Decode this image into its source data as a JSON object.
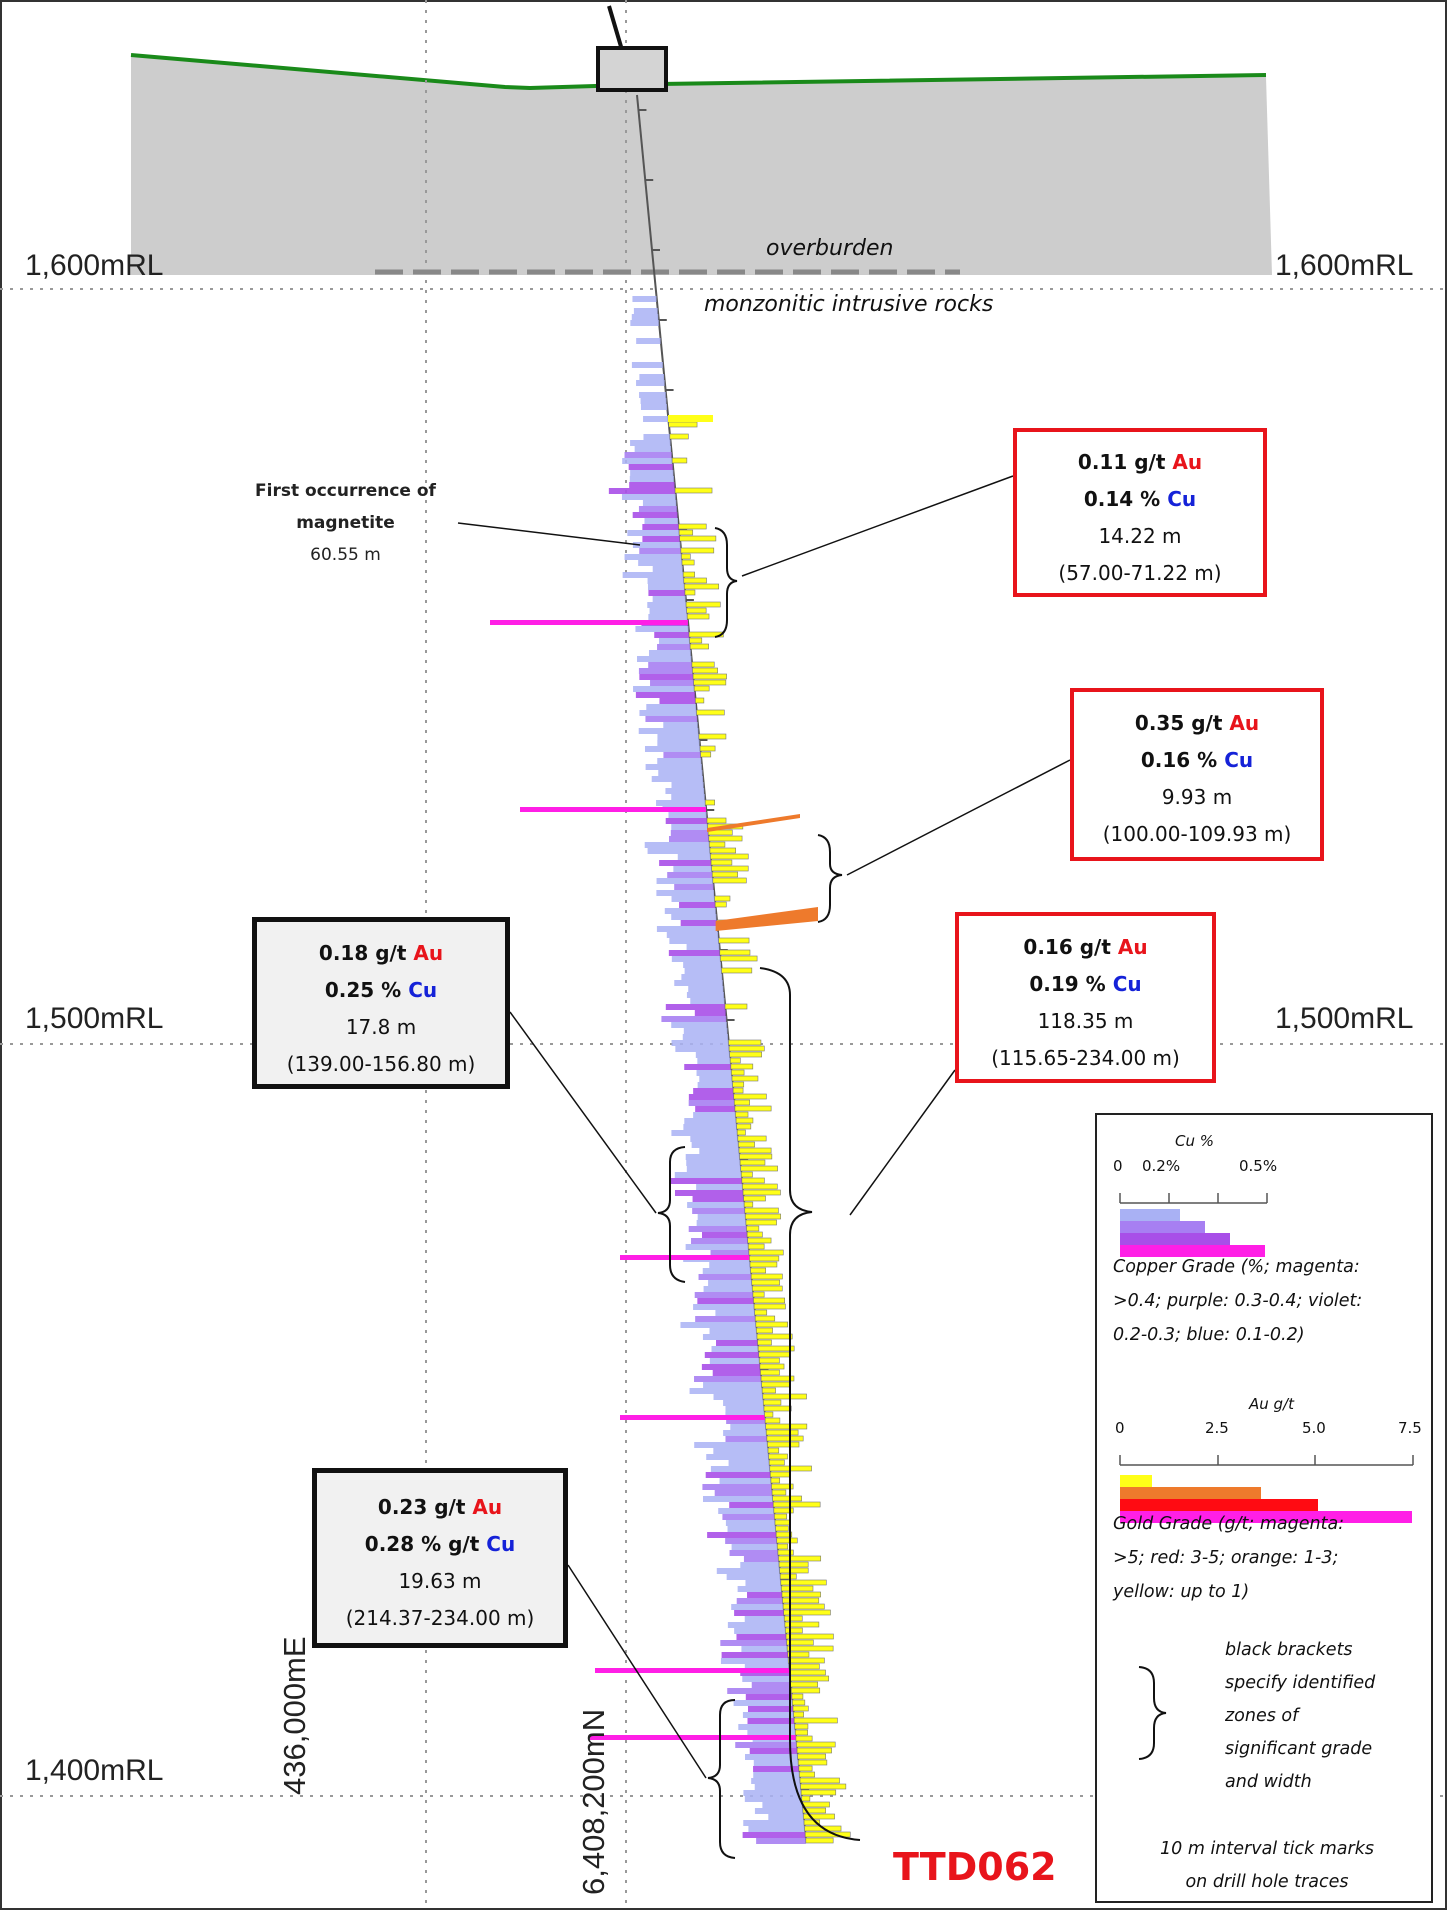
{
  "section": {
    "hole_id": "TTD062",
    "rl_levels": [
      {
        "label": "1,600mRL"
      },
      {
        "label": "1,500mRL"
      },
      {
        "label": "1,400mRL"
      }
    ],
    "easting_label": "436,000mE",
    "northing_label": "6,408,200mN",
    "overburden_label": "overburden",
    "intrusive_label": "monzonitic intrusive rocks",
    "magnetite_note": {
      "line1": "First occurrence of",
      "line2": "magnetite",
      "depth": "60.55 m"
    }
  },
  "intercepts": [
    {
      "au": "0.11 g/t",
      "au_sym": "Au",
      "cu": "0.14 %",
      "cu_sym": "Cu",
      "width": "14.22 m",
      "range": "(57.00-71.22 m)",
      "style": "outer"
    },
    {
      "au": "0.35 g/t",
      "au_sym": "Au",
      "cu": "0.16 %",
      "cu_sym": "Cu",
      "width": "9.93 m",
      "range": "(100.00-109.93 m)",
      "style": "outer"
    },
    {
      "au": "0.16 g/t",
      "au_sym": "Au",
      "cu": "0.19 %",
      "cu_sym": "Cu",
      "width": "118.35 m",
      "range": "(115.65-234.00 m)",
      "style": "outer"
    },
    {
      "au": "0.18 g/t",
      "au_sym": "Au",
      "cu": "0.25 %",
      "cu_sym": "Cu",
      "width": "17.8 m",
      "range": "(139.00-156.80 m)",
      "style": "inner"
    },
    {
      "au": "0.23 g/t",
      "au_sym": "Au",
      "cu": "0.28 % g/t",
      "cu_sym": "Cu",
      "width": "19.63 m",
      "range": "(214.37-234.00 m)",
      "style": "inner"
    }
  ],
  "legend": {
    "cu_title": "Cu %",
    "cu_ticks": [
      "0",
      "0.2%",
      "0.5%"
    ],
    "cu_bars": [
      {
        "class": "0.1-0.2",
        "color": "#a9b1f4"
      },
      {
        "class": "0.2-0.3",
        "color": "#a77ff2"
      },
      {
        "class": "0.3-0.4",
        "color": "#a84fe8"
      },
      {
        "class": ">0.4",
        "color": "#ff1fe6"
      }
    ],
    "cu_caption": [
      "Copper Grade (%; magenta:",
      ">0.4; purple: 0.3-0.4; violet:",
      "0.2-0.3; blue: 0.1-0.2)"
    ],
    "au_title": "Au g/t",
    "au_ticks": [
      "0",
      "2.5",
      "5.0",
      "7.5"
    ],
    "au_bars": [
      {
        "class": "up to 1",
        "color": "#ffff18"
      },
      {
        "class": "1-3",
        "color": "#ee7a2c"
      },
      {
        "class": "3-5",
        "color": "#ff0b12"
      },
      {
        "class": ">5",
        "color": "#ff1fe6"
      }
    ],
    "au_caption": [
      "Gold Grade (g/t; magenta:",
      ">5; red: 3-5; orange: 1-3;",
      "yellow: up to 1)"
    ],
    "bracket_note": [
      "black brackets",
      "specify identified",
      "zones of",
      "significant grade",
      "and width"
    ],
    "tick_note": [
      "10 m interval tick marks",
      "on drill hole traces"
    ]
  },
  "colors": {
    "topography": "#1a8a1a",
    "overburden_fill": "#cdcdcd",
    "outer_box": "#e8141b",
    "inner_box": "#111111",
    "hole_label": "#e8141b"
  }
}
